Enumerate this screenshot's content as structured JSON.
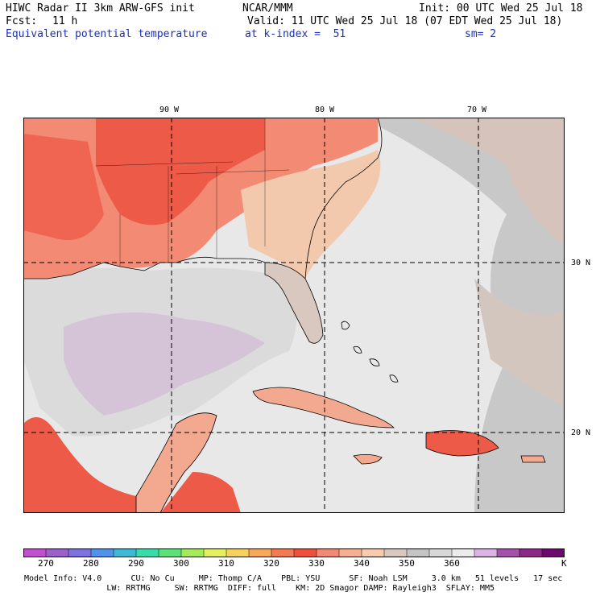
{
  "header": {
    "title": "HIWC Radar II 3km ARW-GFS init",
    "org": "NCAR/MMM",
    "init": "Init: 00 UTC Wed 25 Jul 18",
    "fcst_label": "Fcst:",
    "fcst_value": "11 h",
    "valid": "Valid: 11 UTC Wed 25 Jul 18 (07 EDT Wed 25 Jul 18)",
    "field": "Equivalent potential temperature",
    "level": "at k-index =  51",
    "smooth": "sm= 2"
  },
  "map": {
    "lon_labels": [
      "90 W",
      "80 W",
      "70 W"
    ],
    "lat_labels": [
      "30 N",
      "20 N"
    ]
  },
  "colorbar": {
    "ticks": [
      "270",
      "280",
      "290",
      "300",
      "310",
      "320",
      "330",
      "340",
      "350",
      "360"
    ],
    "unit": "K",
    "colors": [
      "#c24fd0",
      "#9a62c8",
      "#7e72de",
      "#4f94ea",
      "#3fb8d6",
      "#38dcaa",
      "#5ee07a",
      "#a6ea5c",
      "#e4f060",
      "#f6d060",
      "#f8a85a",
      "#f27a54",
      "#ee5040",
      "#f08a74",
      "#f6ae94",
      "#f5ccb2",
      "#d8c8c0",
      "#c4c4c4",
      "#d8d8d8",
      "#ececec",
      "#dcb4e4",
      "#a454a8",
      "#8a2a86",
      "#6a0a6c"
    ]
  },
  "footer": {
    "line1": "Model Info: V4.0      CU: No Cu     MP: Thomp C/A    PBL: YSU      SF: Noah LSM     3.0 km   51 levels   17 sec",
    "line2": "                 LW: RRTMG     SW: RRTMG  DIFF: full    KM: 2D Smagor DAMP: Rayleigh3  SFLAY: MM5"
  }
}
